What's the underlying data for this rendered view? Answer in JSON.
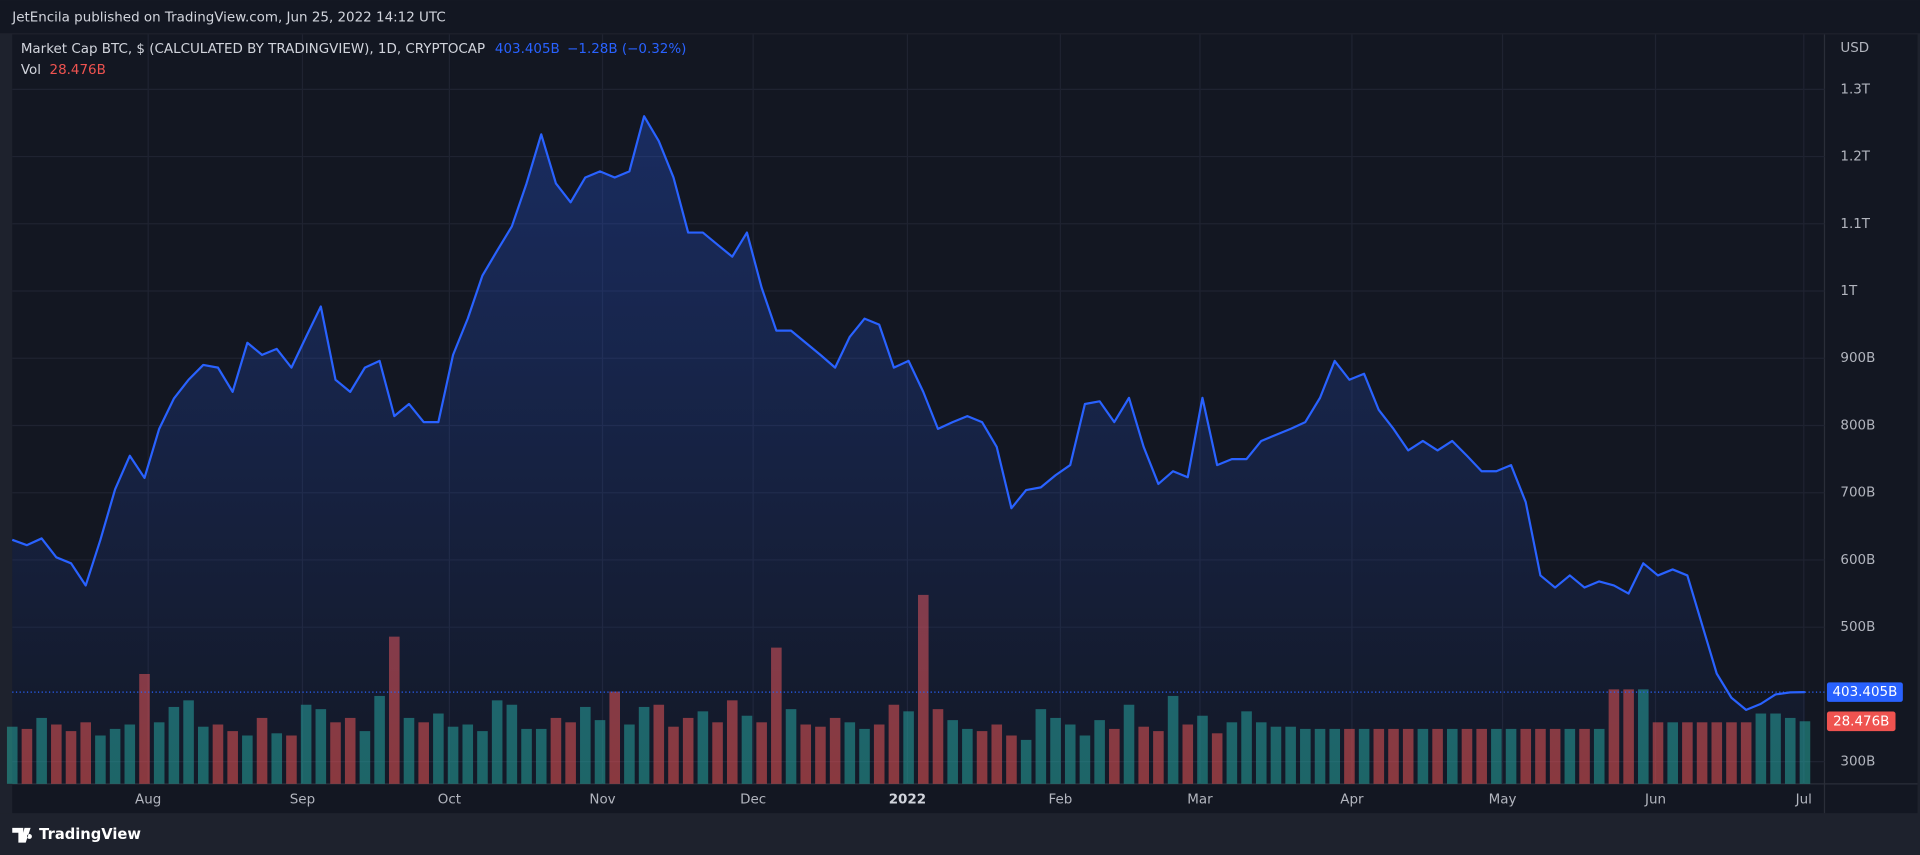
{
  "header": {
    "publisher": "JetEncila published on TradingView.com, Jun 25, 2022 14:12 UTC"
  },
  "footer": {
    "brand": "TradingView"
  },
  "chart_data": {
    "type": "line",
    "title": "Market Cap BTC, $ (CALCULATED BY TRADINGVIEW), 1D, CRYPTOCAP",
    "change": "−1.28B (−0.32%)",
    "y_axis_label": "USD",
    "grid": true,
    "ylim": [
      267,
      1378
    ],
    "yticks": [
      {
        "value": 300,
        "label": "300B"
      },
      {
        "value": 500,
        "label": "500B"
      },
      {
        "value": 600,
        "label": "600B"
      },
      {
        "value": 700,
        "label": "700B"
      },
      {
        "value": 800,
        "label": "800B"
      },
      {
        "value": 900,
        "label": "900B"
      },
      {
        "value": 1000,
        "label": "1T"
      },
      {
        "value": 1100,
        "label": "1.1T"
      },
      {
        "value": 1200,
        "label": "1.2T"
      },
      {
        "value": 1300,
        "label": "1.3T"
      }
    ],
    "y2lim": [
      0,
      340
    ],
    "xlim": [
      0,
      123.33
    ],
    "xticks": [
      {
        "value": 9.25,
        "label": "Aug"
      },
      {
        "value": 19.75,
        "label": "Sep"
      },
      {
        "value": 29.75,
        "label": "Oct"
      },
      {
        "value": 40.17,
        "label": "Nov"
      },
      {
        "value": 50.42,
        "label": "Dec"
      },
      {
        "value": 60.92,
        "label": "2022"
      },
      {
        "value": 71.33,
        "label": "Feb"
      },
      {
        "value": 80.83,
        "label": "Mar"
      },
      {
        "value": 91.17,
        "label": "Apr"
      },
      {
        "value": 101.42,
        "label": "May"
      },
      {
        "value": 111.83,
        "label": "Jun"
      },
      {
        "value": 121.92,
        "label": "Jul"
      }
    ],
    "series": [
      {
        "color": "#2962ff",
        "last_label": "403.405B",
        "values": [
          630,
          622,
          632,
          604,
          595,
          562,
          630,
          705,
          755,
          722,
          795,
          840,
          868,
          890,
          886,
          850,
          923,
          905,
          914,
          886,
          932,
          977,
          868,
          850,
          886,
          896,
          814,
          832,
          805,
          805,
          905,
          959,
          1023,
          1060,
          1096,
          1160,
          1233,
          1160,
          1132,
          1169,
          1178,
          1169,
          1178,
          1260,
          1223,
          1169,
          1087,
          1087,
          1069,
          1051,
          1087,
          1005,
          941,
          941,
          923,
          905,
          886,
          932,
          959,
          950,
          886,
          896,
          850,
          795,
          805,
          814,
          805,
          768,
          677,
          704,
          708,
          726,
          741,
          832,
          836,
          805,
          841,
          768,
          713,
          732,
          723,
          841,
          741,
          750,
          750,
          777,
          786,
          795,
          805,
          841,
          896,
          868,
          877,
          823,
          795,
          763,
          777,
          763,
          777,
          755,
          732,
          732,
          741,
          686,
          577,
          559,
          577,
          559,
          568,
          562,
          550,
          595,
          577,
          586,
          577,
          504,
          431,
          395,
          377,
          386,
          400,
          403,
          403.405
        ]
      },
      {
        "name": "Vol",
        "type": "bar",
        "axis": "y2",
        "up_color": "#26a69a",
        "down_color": "#ef5350",
        "last_label": "28.476B",
        "values": [
          26,
          25,
          30,
          27,
          24,
          28,
          22,
          25,
          27,
          50,
          28,
          35,
          38,
          26,
          27,
          24,
          22,
          30,
          23,
          22,
          36,
          34,
          28,
          30,
          24,
          40,
          67,
          30,
          28,
          32,
          26,
          27,
          24,
          38,
          36,
          25,
          25,
          30,
          28,
          35,
          29,
          42,
          27,
          35,
          36,
          26,
          30,
          33,
          28,
          38,
          31,
          28,
          62,
          34,
          27,
          26,
          30,
          28,
          25,
          27,
          36,
          33,
          86,
          34,
          29,
          25,
          24,
          27,
          22,
          20,
          34,
          30,
          27,
          22,
          29,
          25,
          36,
          26,
          24,
          40,
          27,
          31,
          23,
          28,
          33,
          28,
          26,
          26,
          25,
          25,
          25,
          25,
          25,
          25,
          25,
          25,
          25,
          25,
          25,
          25,
          25,
          25,
          25,
          25,
          25,
          25,
          25,
          25,
          25,
          43,
          43,
          43,
          28,
          28,
          28,
          28,
          28,
          28,
          28,
          32,
          32,
          30,
          28.476
        ]
      }
    ]
  }
}
